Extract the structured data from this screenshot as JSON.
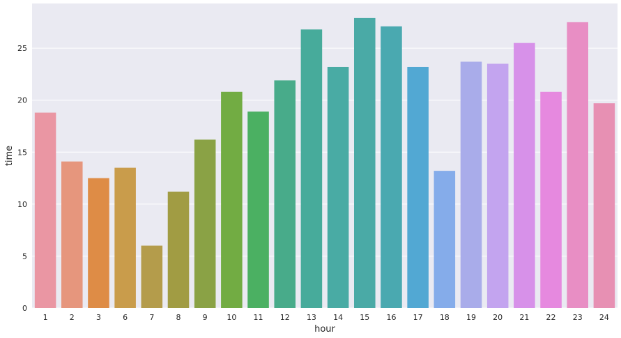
{
  "chart_data": {
    "type": "bar",
    "title": "",
    "xlabel": "hour",
    "ylabel": "time",
    "categories": [
      "1",
      "2",
      "3",
      "6",
      "7",
      "8",
      "9",
      "10",
      "11",
      "12",
      "13",
      "14",
      "15",
      "16",
      "17",
      "18",
      "19",
      "20",
      "21",
      "22",
      "23",
      "24"
    ],
    "values": [
      18.8,
      14.1,
      12.5,
      13.5,
      6.0,
      11.2,
      16.2,
      20.8,
      18.9,
      21.9,
      26.8,
      23.2,
      27.9,
      27.1,
      23.2,
      13.2,
      23.7,
      23.5,
      25.5,
      20.8,
      27.5,
      19.7
    ],
    "colors": [
      "#ea96a3",
      "#e6967d",
      "#de8c46",
      "#c99c4b",
      "#b49c4b",
      "#a19c43",
      "#8aa245",
      "#72ac43",
      "#4bb062",
      "#48ab8a",
      "#47ab9b",
      "#49aba4",
      "#4aaaa6",
      "#4aa9b0",
      "#52a8d3",
      "#85acea",
      "#a9acea",
      "#c3a4ef",
      "#d791e9",
      "#e689df",
      "#e88ec4",
      "#e790b3"
    ],
    "ylim": [
      0,
      29.3
    ],
    "yticks": [
      0,
      5,
      10,
      15,
      20,
      25
    ],
    "grid": true,
    "background": "#eaeaf2",
    "grid_color": "#ffffff",
    "text_color": "#262626"
  }
}
